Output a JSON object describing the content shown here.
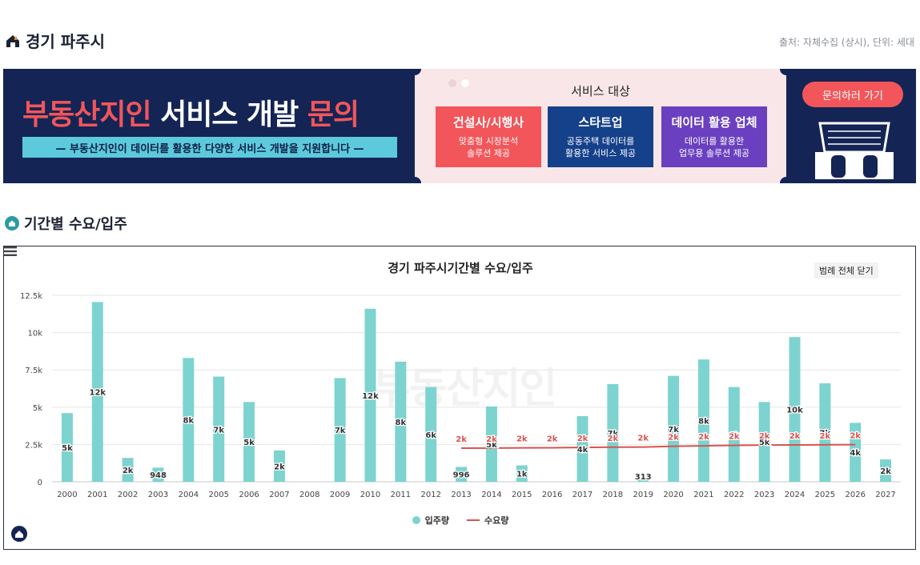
{
  "header": {
    "region": "경기 파주시",
    "source": "출처: 자체수집 (상시), 단위: 세대"
  },
  "banner": {
    "headline_red_1": "부동산지인",
    "headline_white": "서비스 개발",
    "headline_red_2": "문의",
    "subtitle": "— 부동산지인이 데이터를 활용한 다양한 서비스 개발을 지원합니다 —",
    "service_title": "서비스 대상",
    "services": [
      {
        "title": "건설사/시행사",
        "desc1": "맞춤형 시장분석",
        "desc2": "솔루션 제공",
        "color": "#f2565a"
      },
      {
        "title": "스타트업",
        "desc1": "공동주택 데이터를",
        "desc2": "활용한 서비스 제공",
        "color": "#15408a"
      },
      {
        "title": "데이터 활용 업체",
        "desc1": "데이터를 활용한",
        "desc2": "업무용 솔루션 제공",
        "color": "#6a40c0"
      }
    ],
    "inquiry_button": "문의하러 가기"
  },
  "section": {
    "title": "기간별 수요/입주"
  },
  "chart_controls": {
    "legend_toggle": "범례 전체 닫기"
  },
  "watermark": "부동산지인",
  "chart_data": {
    "type": "bar",
    "title": "경기 파주시기간별 수요/입주",
    "categories": [
      "2000",
      "2001",
      "2002",
      "2003",
      "2004",
      "2005",
      "2006",
      "2007",
      "2008",
      "2009",
      "2010",
      "2011",
      "2012",
      "2013",
      "2014",
      "2015",
      "2016",
      "2017",
      "2018",
      "2019",
      "2020",
      "2021",
      "2022",
      "2023",
      "2024",
      "2025",
      "2026",
      "2027"
    ],
    "ylim": [
      0,
      12500
    ],
    "yticks": [
      0,
      2500,
      5000,
      7500,
      10000,
      12500
    ],
    "ytick_labels": [
      "0",
      "2.5k",
      "5k",
      "7.5k",
      "10k",
      "12.5k"
    ],
    "series": [
      {
        "name": "입주량",
        "type": "bar",
        "color": "#7dd3cf",
        "values": [
          4600,
          12050,
          1600,
          948,
          8300,
          7050,
          5350,
          2100,
          0,
          6950,
          11600,
          8050,
          6350,
          996,
          5050,
          1100,
          0,
          4400,
          6550,
          313,
          7100,
          8200,
          6350,
          5350,
          9700,
          6600,
          3950,
          1500
        ],
        "labels": [
          "5k",
          "12k",
          "2k",
          "948",
          "8k",
          "7k",
          "5k",
          "2k",
          "",
          "7k",
          "12k",
          "8k",
          "6k",
          "996",
          "5k",
          "1k",
          "",
          "4k",
          "7k",
          "313",
          "7k",
          "8k",
          "6k",
          "5k",
          "10k",
          "7k",
          "4k",
          "2k"
        ]
      },
      {
        "name": "수요량",
        "type": "line",
        "color": "#d9534f",
        "values": [
          null,
          null,
          null,
          null,
          null,
          null,
          null,
          null,
          null,
          null,
          null,
          null,
          null,
          2250,
          2260,
          2270,
          2280,
          2300,
          2320,
          2330,
          2380,
          2410,
          2440,
          2460,
          2470,
          2480,
          2490,
          null
        ],
        "labels": [
          "",
          "",
          "",
          "",
          "",
          "",
          "",
          "",
          "",
          "",
          "",
          "",
          "",
          "2k",
          "2k",
          "2k",
          "2k",
          "2k",
          "2k",
          "2k",
          "2k",
          "2k",
          "2k",
          "2k",
          "2k",
          "2k",
          "2k",
          ""
        ]
      }
    ]
  }
}
